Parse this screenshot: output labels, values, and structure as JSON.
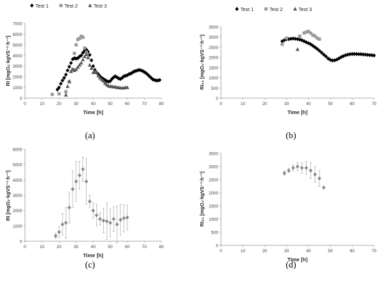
{
  "figure": {
    "panel_labels": [
      "(a)",
      "(b)",
      "(c)",
      "(d)"
    ]
  },
  "chart_data": [
    {
      "type": "scatter",
      "panel": "(a)",
      "title": "",
      "xlabel": "Time [h]",
      "ylabel": "RI [mgO₂·kgVS⁻¹·h⁻¹]",
      "xlim": [
        0,
        80
      ],
      "ylim": [
        0,
        7000
      ],
      "xticks": [
        0,
        10,
        20,
        30,
        40,
        50,
        60,
        70,
        80
      ],
      "yticks": [
        0,
        1000,
        2000,
        3000,
        4000,
        5000,
        6000,
        7000
      ],
      "grid": false,
      "legend_position": "top",
      "series": [
        {
          "name": "Test 1",
          "marker": "diamond",
          "color": "#000000",
          "x": [
            19,
            20,
            21,
            22,
            23,
            24,
            25,
            26,
            27,
            28,
            29,
            30,
            31,
            32,
            33,
            34,
            35,
            36,
            37,
            38,
            39,
            40,
            41,
            42,
            43,
            44,
            45,
            46,
            47,
            48,
            49,
            50,
            51,
            52,
            53,
            54,
            55,
            56,
            57,
            58,
            59,
            60,
            61,
            62,
            63,
            64,
            65,
            66,
            67,
            68,
            69,
            70,
            71,
            72,
            73,
            74,
            75,
            76,
            77,
            78,
            79
          ],
          "y": [
            800,
            1000,
            1350,
            1650,
            1900,
            2200,
            2600,
            2950,
            3300,
            3650,
            3750,
            3700,
            3750,
            3900,
            4000,
            4250,
            4450,
            4550,
            4350,
            4050,
            3550,
            3000,
            2650,
            2400,
            2250,
            2050,
            1900,
            1800,
            1700,
            1600,
            1550,
            1600,
            1800,
            1950,
            2050,
            1950,
            1850,
            1800,
            1900,
            2050,
            2100,
            2150,
            2250,
            2300,
            2400,
            2500,
            2550,
            2600,
            2650,
            2600,
            2550,
            2450,
            2350,
            2200,
            2050,
            1900,
            1750,
            1700,
            1650,
            1650,
            1700
          ]
        },
        {
          "name": "Test 2",
          "marker": "square",
          "color": "#999999",
          "x": [
            16,
            20,
            24,
            26,
            28,
            29,
            30,
            31,
            32,
            33,
            34,
            35,
            36
          ],
          "y": [
            350,
            400,
            600,
            1500,
            2700,
            4200,
            5000,
            5500,
            5600,
            5800,
            5700,
            4700,
            4300
          ]
        },
        {
          "name": "Test 3",
          "marker": "triangle",
          "color": "#555555",
          "x": [
            24,
            25,
            26,
            27,
            28,
            29,
            30,
            31,
            32,
            33,
            34,
            35,
            36,
            37,
            38,
            39,
            40,
            41,
            42,
            43,
            44,
            45,
            46,
            47,
            48,
            49,
            50,
            51,
            52,
            53,
            54,
            55,
            56,
            57,
            58,
            59,
            60
          ],
          "y": [
            300,
            1100,
            1600,
            2500,
            2700,
            2600,
            2700,
            2900,
            3100,
            3300,
            3600,
            3900,
            4100,
            3800,
            3100,
            2800,
            2400,
            2500,
            2400,
            2100,
            1900,
            1750,
            1600,
            1400,
            1250,
            1150,
            1100,
            1100,
            1050,
            1050,
            1000,
            1000,
            950,
            950,
            950,
            1000,
            1000
          ]
        }
      ]
    },
    {
      "type": "scatter",
      "panel": "(b)",
      "title": "",
      "xlabel": "Time [h]",
      "ylabel": "RI₂₄ [mgO₂·kgVS⁻¹·h⁻¹]",
      "xlim": [
        0,
        70
      ],
      "ylim": [
        0,
        3500
      ],
      "xticks": [
        0,
        10,
        20,
        30,
        40,
        50,
        60,
        70
      ],
      "yticks": [
        0,
        500,
        1000,
        1500,
        2000,
        2500,
        3000,
        3500
      ],
      "grid": false,
      "legend_position": "top",
      "series": [
        {
          "name": "Test 1",
          "marker": "diamond",
          "color": "#000000",
          "x": [
            28,
            29,
            30,
            31,
            32,
            33,
            34,
            35,
            36,
            37,
            38,
            39,
            40,
            41,
            42,
            43,
            44,
            45,
            46,
            47,
            48,
            49,
            50,
            51,
            52,
            53,
            54,
            55,
            56,
            57,
            58,
            59,
            60,
            61,
            62,
            63,
            64,
            65,
            66,
            67,
            68,
            69,
            70
          ],
          "y": [
            2800,
            2850,
            2900,
            2900,
            2920,
            2930,
            2920,
            2900,
            2880,
            2850,
            2800,
            2750,
            2700,
            2650,
            2580,
            2500,
            2420,
            2330,
            2240,
            2140,
            2050,
            1950,
            1880,
            1850,
            1860,
            1900,
            1960,
            2020,
            2070,
            2110,
            2140,
            2160,
            2170,
            2170,
            2170,
            2160,
            2160,
            2150,
            2140,
            2130,
            2120,
            2110,
            2100
          ]
        },
        {
          "name": "Test 2",
          "marker": "square",
          "color": "#999999",
          "x": [
            28,
            30,
            36,
            38,
            39,
            40,
            41,
            42,
            43,
            44,
            45
          ],
          "y": [
            2650,
            2950,
            3050,
            3200,
            3250,
            3280,
            3200,
            3100,
            3050,
            2950,
            2900
          ]
        },
        {
          "name": "Test 3",
          "marker": "triangle",
          "color": "#555555",
          "x": [
            35
          ],
          "y": [
            2400
          ]
        }
      ]
    },
    {
      "type": "scatter",
      "panel": "(c)",
      "title": "",
      "xlabel": "Time [h]",
      "ylabel": "RI [mgO₂·kgVS⁻¹·h⁻¹]",
      "xlim": [
        0,
        80
      ],
      "ylim": [
        0,
        6000
      ],
      "xticks": [
        0,
        10,
        20,
        30,
        40,
        50,
        60,
        70,
        80
      ],
      "yticks": [
        0,
        1000,
        2000,
        3000,
        4000,
        5000,
        6000
      ],
      "grid": false,
      "error_bars": true,
      "series": [
        {
          "marker": "diamond",
          "color": "#888888",
          "x": [
            18,
            20,
            22,
            24,
            26,
            28,
            30,
            32,
            34,
            36,
            38,
            40,
            42,
            44,
            46,
            48,
            50,
            52,
            54,
            56,
            58,
            60
          ],
          "y": [
            350,
            600,
            1100,
            1200,
            2200,
            3400,
            3900,
            4300,
            4700,
            3900,
            2600,
            2000,
            1700,
            1450,
            1350,
            1300,
            1200,
            1450,
            1100,
            1400,
            1500,
            1550
          ],
          "err": [
            150,
            350,
            700,
            1000,
            1000,
            1200,
            1300,
            900,
            800,
            1500,
            400,
            500,
            700,
            400,
            800,
            1200,
            900,
            800,
            1200,
            1000,
            900,
            800
          ]
        }
      ]
    },
    {
      "type": "scatter",
      "panel": "(d)",
      "title": "",
      "xlabel": "Time [h]",
      "ylabel": "RI₂₄ [mgO₂·kgVS⁻¹·h⁻¹]",
      "xlim": [
        0,
        70
      ],
      "ylim": [
        0,
        3500
      ],
      "xticks": [
        0,
        10,
        20,
        30,
        40,
        50,
        60,
        70
      ],
      "yticks": [
        0,
        500,
        1000,
        1500,
        2000,
        2500,
        3000,
        3500
      ],
      "grid": false,
      "error_bars": true,
      "series": [
        {
          "marker": "diamond",
          "color": "#888888",
          "x": [
            29,
            31,
            33,
            35,
            37,
            39,
            41,
            43,
            45,
            47
          ],
          "y": [
            2750,
            2850,
            2950,
            3000,
            2950,
            2950,
            2850,
            2700,
            2550,
            2200
          ],
          "err": [
            80,
            80,
            120,
            150,
            200,
            250,
            300,
            300,
            300,
            0
          ]
        }
      ]
    }
  ]
}
